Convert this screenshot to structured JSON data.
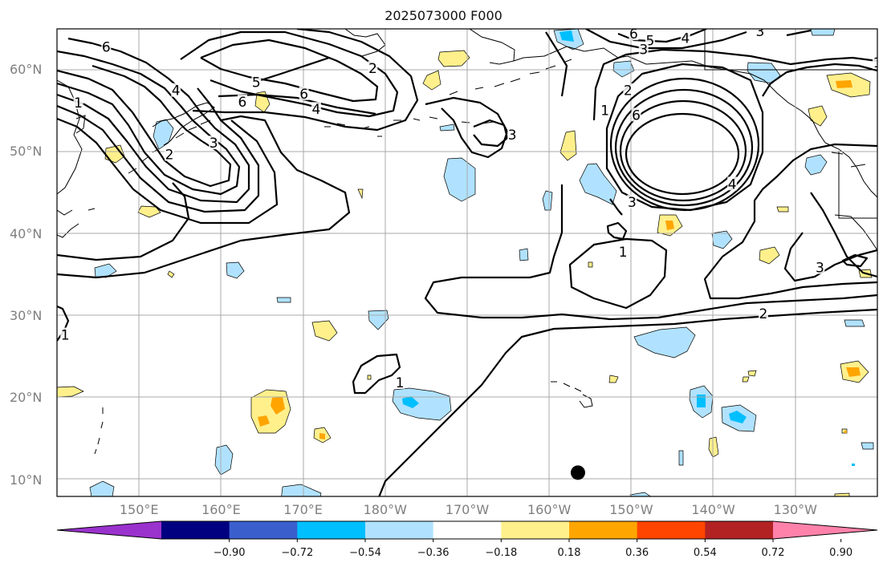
{
  "title": "2025073000 F000",
  "map": {
    "lat_range": [
      8,
      65
    ],
    "lon_range": [
      140,
      240
    ],
    "grid": true,
    "lat_ticks": [
      {
        "value": 10,
        "label": "10°N"
      },
      {
        "value": 20,
        "label": "20°N"
      },
      {
        "value": 30,
        "label": "30°N"
      },
      {
        "value": 40,
        "label": "40°N"
      },
      {
        "value": 50,
        "label": "50°N"
      },
      {
        "value": 60,
        "label": "60°N"
      }
    ],
    "lon_ticks": [
      {
        "value": 150,
        "label": "150°E"
      },
      {
        "value": 160,
        "label": "160°E"
      },
      {
        "value": 170,
        "label": "170°E"
      },
      {
        "value": 180,
        "label": "180°W"
      },
      {
        "value": 190,
        "label": "170°W"
      },
      {
        "value": 200,
        "label": "160°W"
      },
      {
        "value": 210,
        "label": "150°W"
      },
      {
        "value": 220,
        "label": "140°W"
      },
      {
        "value": 230,
        "label": "130°W"
      }
    ],
    "contour_labels": [
      {
        "text": "6",
        "lon": 146,
        "lat": 62.8
      },
      {
        "text": "4",
        "lon": 154.5,
        "lat": 57.5
      },
      {
        "text": "1",
        "lon": 142.6,
        "lat": 56
      },
      {
        "text": "2",
        "lon": 153.7,
        "lat": 49.7
      },
      {
        "text": "3",
        "lon": 159.1,
        "lat": 51.1
      },
      {
        "text": "6",
        "lon": 162.6,
        "lat": 56.1
      },
      {
        "text": "5",
        "lon": 164.3,
        "lat": 58.5
      },
      {
        "text": "6",
        "lon": 170.1,
        "lat": 57.1
      },
      {
        "text": "4",
        "lon": 171.6,
        "lat": 55.2
      },
      {
        "text": "2",
        "lon": 178.5,
        "lat": 60.2
      },
      {
        "text": "3",
        "lon": 195.5,
        "lat": 52.1
      },
      {
        "text": "6",
        "lon": 210.3,
        "lat": 64.4
      },
      {
        "text": "5",
        "lon": 212.3,
        "lat": 63.6
      },
      {
        "text": "4",
        "lon": 216.6,
        "lat": 63.9
      },
      {
        "text": "3",
        "lon": 211.5,
        "lat": 62.5
      },
      {
        "text": "3",
        "lon": 225.7,
        "lat": 64.7
      },
      {
        "text": "1",
        "lon": 206.8,
        "lat": 55.1
      },
      {
        "text": "2",
        "lon": 209.6,
        "lat": 57.5
      },
      {
        "text": "6",
        "lon": 210.6,
        "lat": 54.5
      },
      {
        "text": "4",
        "lon": 222.3,
        "lat": 46.1
      },
      {
        "text": "3",
        "lon": 210.1,
        "lat": 43.9
      },
      {
        "text": "1",
        "lon": 209,
        "lat": 37.8
      },
      {
        "text": "2",
        "lon": 226.1,
        "lat": 30.3
      },
      {
        "text": "3",
        "lon": 233,
        "lat": 35.9
      },
      {
        "text": "1",
        "lon": 240,
        "lat": 60.9
      },
      {
        "text": "1",
        "lon": 141,
        "lat": 27.7
      },
      {
        "text": "1",
        "lon": 181.8,
        "lat": 21.9
      }
    ],
    "marker": {
      "name": "point-marker",
      "lon": 203.5,
      "lat": 10.9
    }
  },
  "colorbar": {
    "colors": [
      "#9a32cd",
      "#000080",
      "#3a5fcd",
      "#00bfff",
      "#b0e2ff",
      "#ffffff",
      "#fff08c",
      "#ffa500",
      "#ff4500",
      "#b22222",
      "#ff82ab"
    ],
    "ticks": [
      "−0.90",
      "−0.72",
      "−0.54",
      "−0.36",
      "−0.18",
      "0.18",
      "0.36",
      "0.54",
      "0.72",
      "0.90"
    ]
  }
}
